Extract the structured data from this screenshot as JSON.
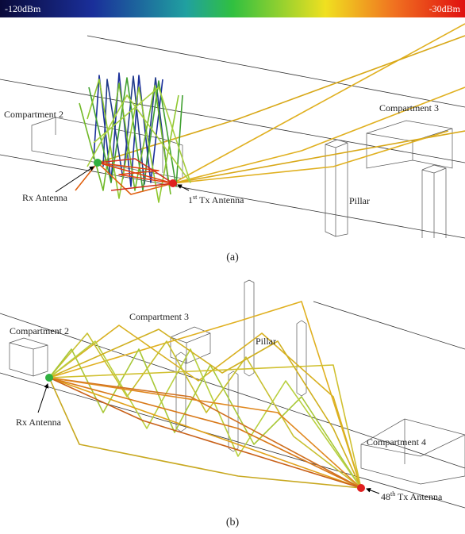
{
  "colorbar": {
    "min_label": "-120dBm",
    "max_label": "-30dBm"
  },
  "panel_a": {
    "compartment_2": "Compartment 2",
    "compartment_3": "Compartment 3",
    "rx_antenna": "Rx Antenna",
    "tx_antenna": {
      "number": "1",
      "suffix": "st",
      "rest": " Tx Antenna"
    },
    "pillar": "Pillar",
    "caption": "(a)"
  },
  "panel_b": {
    "compartment_3": "Compartment 3",
    "pillar": "Pillar",
    "compartment_2": "Compartment 2",
    "rx_antenna": "Rx Antenna",
    "compartment_4": "Compartment 4",
    "tx_antenna": {
      "number": "48",
      "suffix": "th",
      "rest": " Tx Antenna"
    },
    "caption": "(b)"
  }
}
